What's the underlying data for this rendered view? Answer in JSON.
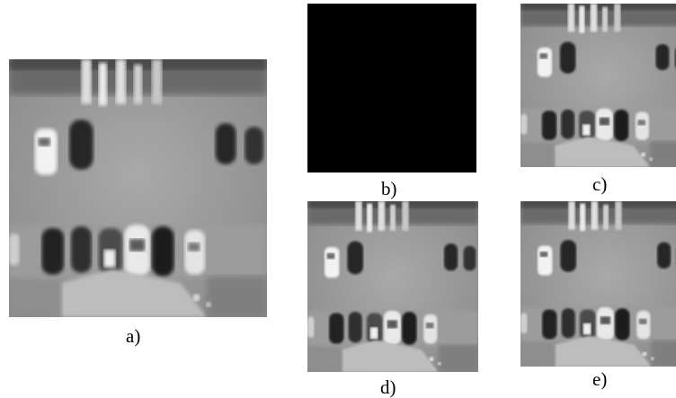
{
  "figure": {
    "panels": [
      {
        "id": "a",
        "label": "a)",
        "content": "thermal-parking-lot"
      },
      {
        "id": "b",
        "label": "b)",
        "content": "black"
      },
      {
        "id": "c",
        "label": "c)",
        "content": "thermal-parking-lot"
      },
      {
        "id": "d",
        "label": "d)",
        "content": "thermal-parking-lot"
      },
      {
        "id": "e",
        "label": "e)",
        "content": "thermal-parking-lot"
      }
    ]
  }
}
